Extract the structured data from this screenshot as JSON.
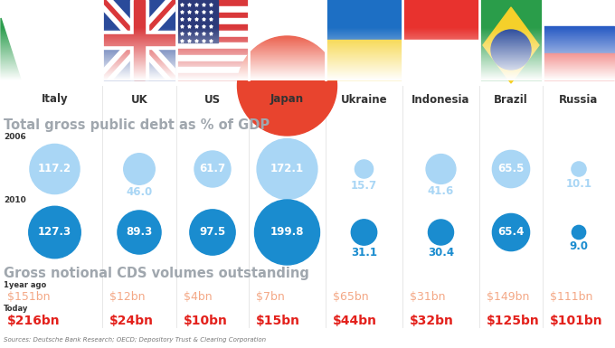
{
  "chart_data": {
    "type": "bubble",
    "title": "Total gross public debt as % of GDP",
    "categories": [
      "Italy",
      "UK",
      "US",
      "Japan",
      "Ukraine",
      "Indonesia",
      "Brazil",
      "Russia"
    ],
    "series": [
      {
        "name": "2006",
        "color": "#a9d6f5",
        "values": [
          117.2,
          46.0,
          61.7,
          172.1,
          15.7,
          41.6,
          65.5,
          10.1
        ]
      },
      {
        "name": "2010",
        "color": "#1a8ccf",
        "values": [
          127.3,
          89.3,
          97.5,
          199.8,
          31.1,
          30.4,
          65.4,
          9.0
        ]
      }
    ],
    "data_labels": true
  },
  "table": {
    "title": "Gross notional CDS volumes outstanding",
    "rows": [
      {
        "label": "1year ago",
        "color": "#f4a886",
        "cells": [
          "$151bn",
          "$12bn",
          "$4bn",
          "$7bn",
          "$65bn",
          "$31bn",
          "$149bn",
          "$111bn"
        ]
      },
      {
        "label": "Today",
        "color": "#e3201b",
        "cells": [
          "$216bn",
          "$24bn",
          "$10bn",
          "$15bn",
          "$44bn",
          "$32bn",
          "$125bn",
          "$101bn"
        ]
      }
    ]
  },
  "source": "Sources: Deutsche Bank Research; OECD; Depository Trust & Clearing Corporation"
}
